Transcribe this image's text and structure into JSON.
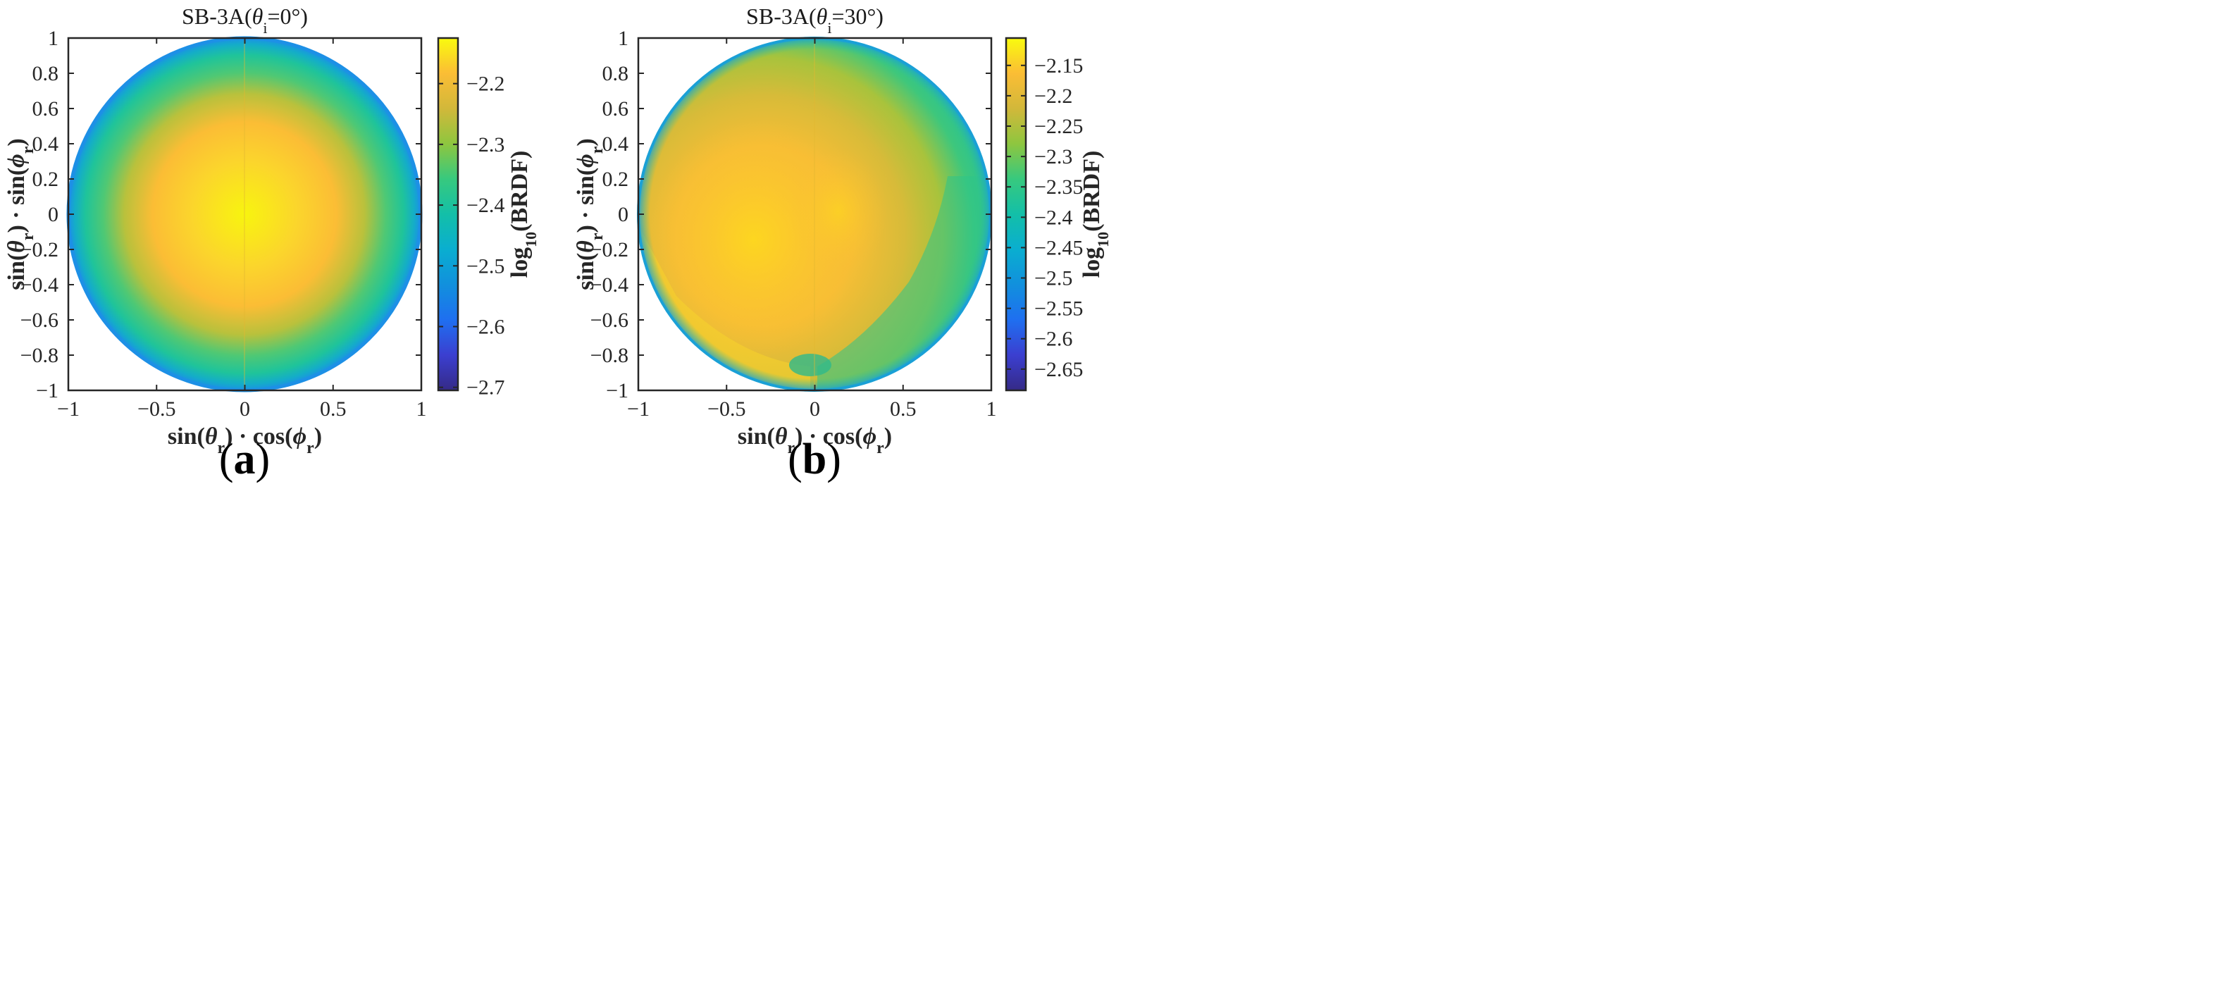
{
  "chart_data": [
    {
      "type": "heatmap",
      "panel": "a",
      "title": {
        "prefix": "SB-3A(",
        "sym": "θ",
        "sub": "i",
        "suffix": "=0°)"
      },
      "xlabel": {
        "f1": "sin(",
        "s1": "θ",
        "sub1": "r",
        "m": ") · cos(",
        "s2": "ϕ",
        "sub2": "r",
        "end": ")"
      },
      "ylabel": {
        "f1": "sin(",
        "s1": "θ",
        "sub1": "r",
        "m": ") · sin(",
        "s2": "ϕ",
        "sub2": "r",
        "end": ")"
      },
      "xlim": [
        -1,
        1
      ],
      "ylim": [
        -1,
        1
      ],
      "xticks": [
        -1,
        -0.5,
        0,
        0.5,
        1
      ],
      "yticks": [
        -1,
        -0.8,
        -0.6,
        -0.4,
        -0.2,
        0,
        0.2,
        0.4,
        0.6,
        0.8,
        1
      ],
      "colorbar": {
        "label": {
          "pre": "log",
          "sub": "10",
          "post": "(BRDF)"
        },
        "min": -2.705,
        "max": -2.125,
        "ticks": [
          -2.2,
          -2.3,
          -2.4,
          -2.5,
          -2.6,
          -2.7
        ],
        "colormap": "parula"
      },
      "field": {
        "center_x": 0.0,
        "center_y": 0.0,
        "center_value": -2.135,
        "edge_value": -2.48,
        "profile": "radial"
      }
    },
    {
      "type": "heatmap",
      "panel": "b",
      "title": {
        "prefix": "SB-3A(",
        "sym": "θ",
        "sub": "i",
        "suffix": "=30°)"
      },
      "xlabel": {
        "f1": "sin(",
        "s1": "θ",
        "sub1": "r",
        "m": ") · cos(",
        "s2": "ϕ",
        "sub2": "r",
        "end": ")"
      },
      "ylabel": {
        "f1": "sin(",
        "s1": "θ",
        "sub1": "r",
        "m": ") · sin(",
        "s2": "ϕ",
        "sub2": "r",
        "end": ")"
      },
      "xlim": [
        -1,
        1
      ],
      "ylim": [
        -1,
        1
      ],
      "xticks": [
        -1,
        -0.5,
        0,
        0.5,
        1
      ],
      "yticks": [
        -1,
        -0.8,
        -0.6,
        -0.4,
        -0.2,
        0,
        0.2,
        0.4,
        0.6,
        0.8,
        1
      ],
      "colorbar": {
        "label": {
          "pre": "log",
          "sub": "10",
          "post": "(BRDF)"
        },
        "min": -2.685,
        "max": -2.105,
        "ticks": [
          -2.15,
          -2.2,
          -2.25,
          -2.3,
          -2.35,
          -2.4,
          -2.45,
          -2.5,
          -2.55,
          -2.6,
          -2.65
        ],
        "colormap": "parula"
      },
      "field": {
        "center_x": -0.3,
        "center_y": -0.15,
        "center_value": -2.2,
        "edge_value": -2.38,
        "profile": "offset-radial"
      }
    }
  ],
  "labels": {
    "a": "a",
    "b": "b"
  }
}
